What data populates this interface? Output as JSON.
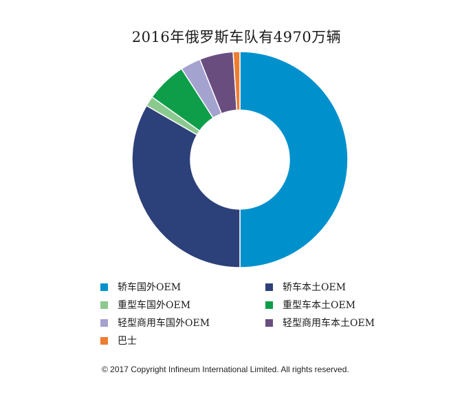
{
  "chart_data": {
    "type": "pie",
    "title": "2016年俄罗斯车队有4970万辆",
    "categories": [
      "轿车国外OEM",
      "轿车本土OEM",
      "重型车国外OEM",
      "重型车本土OEM",
      "轻型商用车国外OEM",
      "轻型商用车本土OEM",
      "巴士"
    ],
    "values": [
      49.5,
      33.0,
      1.5,
      6.0,
      3.0,
      5.0,
      1.0
    ],
    "colors": [
      "#0091CD",
      "#2C4079",
      "#8CC98F",
      "#0E9E4A",
      "#A4A2CF",
      "#6A4D7F",
      "#ED7D31"
    ],
    "legend_position": "bottom"
  },
  "footer": {
    "copyright": "© 2017 Copyright Infineum International Limited. All rights reserved."
  }
}
